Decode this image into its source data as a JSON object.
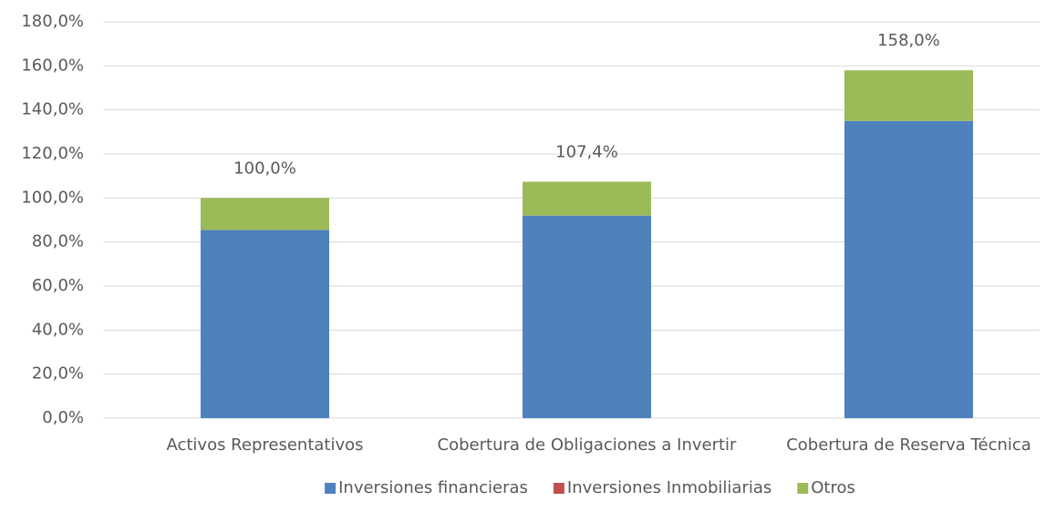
{
  "chart_data": {
    "type": "stacked_bar",
    "categories": [
      "Activos Representativos",
      "Cobertura de Obligaciones a Invertir",
      "Cobertura de Reserva Técnica"
    ],
    "series": [
      {
        "name": "Inversiones financieras",
        "color": "#4f81bd",
        "values": [
          85.5,
          92,
          135
        ]
      },
      {
        "name": "Inversiones Inmobiliarias",
        "color": "#c0504d",
        "values": [
          0,
          0,
          0
        ]
      },
      {
        "name": "Otros",
        "color": "#9bbb59",
        "values": [
          14.5,
          15.4,
          23
        ]
      }
    ],
    "totals": [
      100,
      107.4,
      158
    ],
    "total_labels": [
      "100,0%",
      "107,4%",
      "158,0%"
    ],
    "ylim": [
      0,
      180
    ],
    "yticks": [
      {
        "value": 0,
        "label": "0,0%"
      },
      {
        "value": 20,
        "label": "20,0%"
      },
      {
        "value": 40,
        "label": "40,0%"
      },
      {
        "value": 60,
        "label": "60,0%"
      },
      {
        "value": 80,
        "label": "80,0%"
      },
      {
        "value": 100,
        "label": "100,0%"
      },
      {
        "value": 120,
        "label": "120,0%"
      },
      {
        "value": 140,
        "label": "140,0%"
      },
      {
        "value": 160,
        "label": "160,0%"
      },
      {
        "value": 180,
        "label": "180,0%"
      }
    ],
    "grid": true,
    "legend": "bottom"
  }
}
